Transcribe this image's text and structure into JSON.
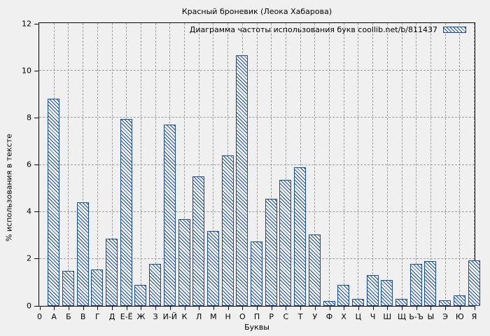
{
  "title": "Красный броневик (Леока Хабарова)",
  "legend": {
    "label": "Диаграмма частоты использования букв coollib.net/b/811437"
  },
  "axes": {
    "x_label": "Буквы",
    "y_label": "% использования в тексте",
    "y_ticks": [
      0,
      2,
      4,
      6,
      8,
      10,
      12
    ],
    "origin_tick_label": "0"
  },
  "colors": {
    "background": "#f0f0f0",
    "bar_blue": "#1b4c9f",
    "grid_gray": "#9e9e9e",
    "border_black": "#000000"
  },
  "chart_data": {
    "type": "bar",
    "title": "Красный броневик (Леока Хабарова)",
    "series_name": "Диаграмма частоты использования букв coollib.net/b/811437",
    "xlabel": "Буквы",
    "ylabel": "% использования в тексте",
    "ylim": [
      0,
      12
    ],
    "grid": true,
    "legend_position": "top-right-inside",
    "bar_style": "blue diagonal hatch, hollow fill",
    "categories": [
      "А",
      "Б",
      "В",
      "Г",
      "Д",
      "Е-Ё",
      "Ж",
      "З",
      "И-Й",
      "К",
      "Л",
      "М",
      "Н",
      "О",
      "П",
      "Р",
      "С",
      "Т",
      "У",
      "Ф",
      "Х",
      "Ц",
      "Ч",
      "Ш",
      "Щ",
      "Ь-Ъ",
      "Ы",
      "Э",
      "Ю",
      "Я"
    ],
    "values": [
      8.8,
      1.5,
      4.4,
      1.55,
      2.85,
      7.95,
      0.9,
      1.8,
      7.7,
      3.7,
      5.5,
      3.2,
      6.4,
      10.65,
      2.75,
      4.55,
      5.35,
      5.9,
      3.05,
      0.2,
      0.9,
      0.3,
      1.3,
      1.1,
      0.3,
      1.8,
      1.9,
      0.25,
      0.45,
      1.95
    ]
  }
}
